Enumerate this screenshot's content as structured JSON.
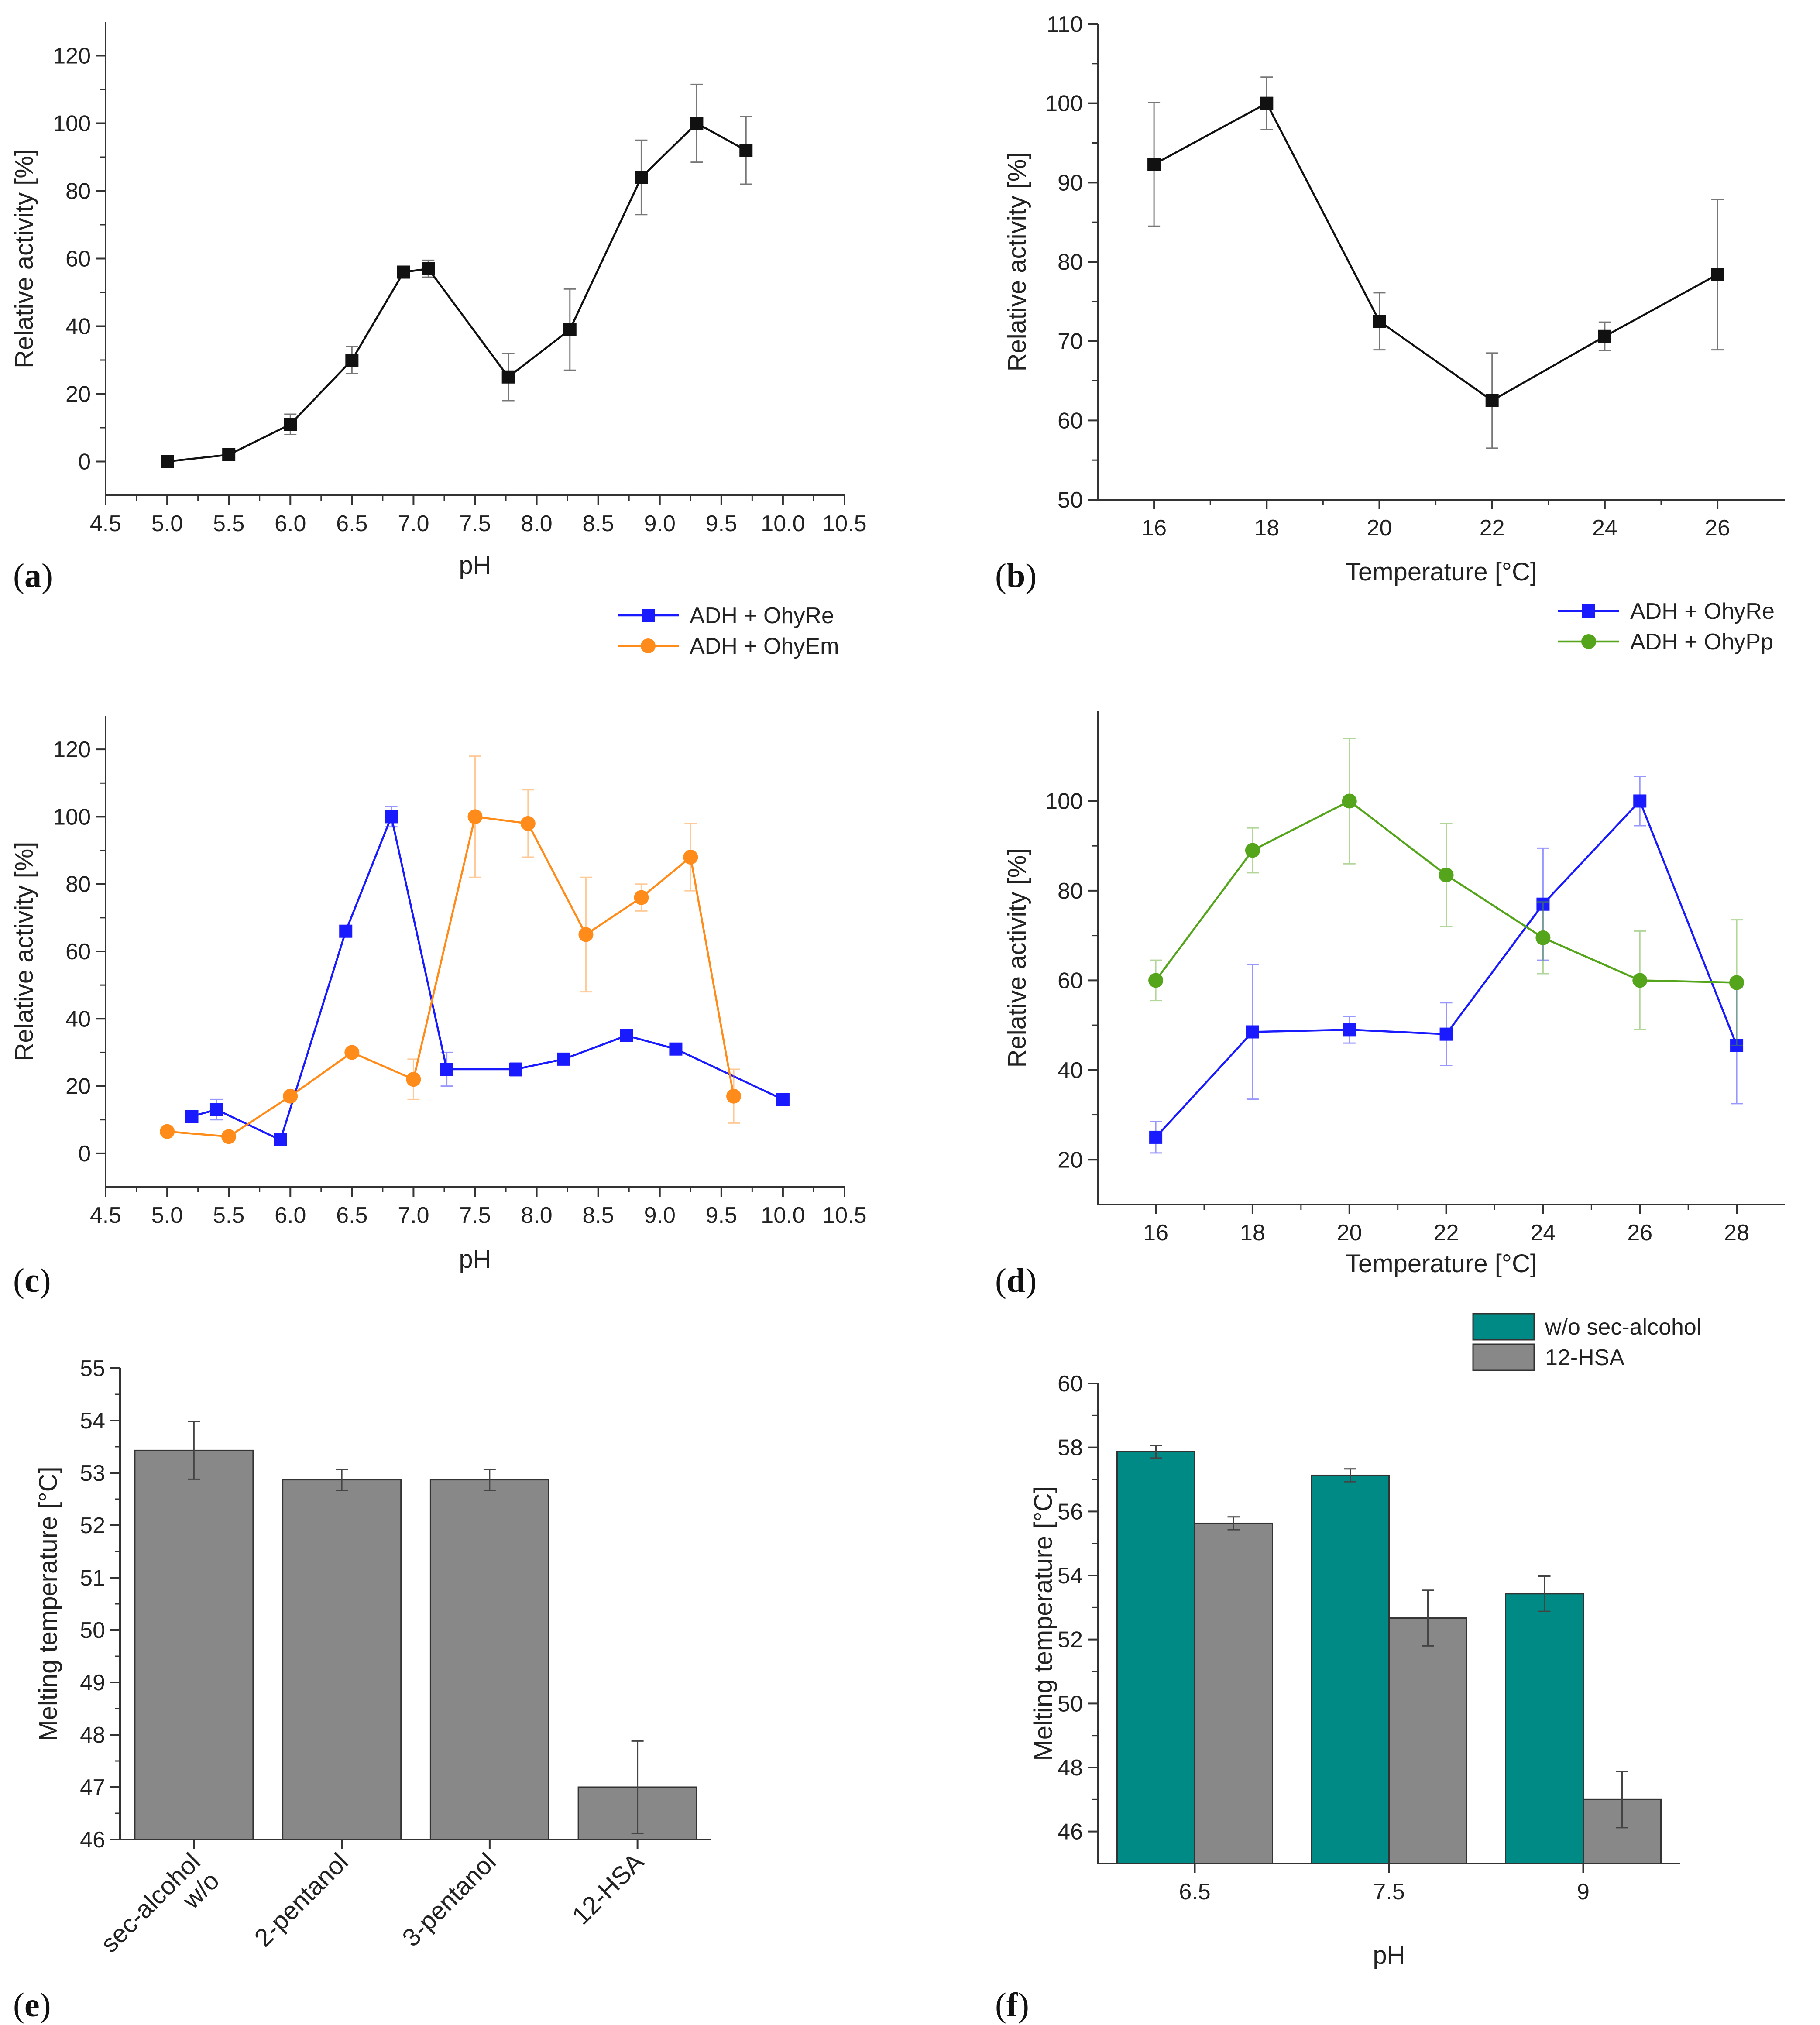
{
  "colors": {
    "black": "#111111",
    "blue": "#1a1aff",
    "orange": "#ff8c1a",
    "green": "#55a51c",
    "teal": "#008a85",
    "gray": "#888888"
  },
  "chart_data": [
    {
      "id": "a",
      "panel_label": "a",
      "type": "line",
      "xlabel": "pH",
      "ylabel": "Relative activity [%]",
      "xlim": [
        4.5,
        10.5
      ],
      "ylim": [
        -10,
        130
      ],
      "xticks": [
        4.5,
        5.0,
        5.5,
        6.0,
        6.5,
        7.0,
        7.5,
        8.0,
        8.5,
        9.0,
        9.5,
        10.0,
        10.5
      ],
      "xtick_labels": [
        "4.5",
        "5.0",
        "5.5",
        "6.0",
        "6.5",
        "7.0",
        "7.5",
        "8.0",
        "8.5",
        "9.0",
        "9.5",
        "10.0",
        "10.5"
      ],
      "yticks": [
        0,
        20,
        40,
        60,
        80,
        100,
        120
      ],
      "ytick_labels": [
        "0",
        "20",
        "40",
        "60",
        "80",
        "100",
        "120"
      ],
      "series": [
        {
          "name": "",
          "color": "#111111",
          "marker": "square",
          "x": [
            5.0,
            5.5,
            6.0,
            6.5,
            6.92,
            7.12,
            7.77,
            8.27,
            8.85,
            9.3,
            9.7
          ],
          "y": [
            0,
            2,
            11,
            30,
            56,
            57,
            25,
            39,
            84,
            100,
            92
          ],
          "err": [
            0,
            0,
            3,
            4,
            1.5,
            2.5,
            7,
            12,
            11,
            11.5,
            10
          ]
        }
      ]
    },
    {
      "id": "b",
      "panel_label": "b",
      "type": "line",
      "xlabel": "Temperature [°C]",
      "ylabel": "Relative activity [%]",
      "xlim": [
        15,
        27.2
      ],
      "ylim": [
        50,
        110
      ],
      "xticks": [
        16,
        18,
        20,
        22,
        24,
        26
      ],
      "xtick_labels": [
        "16",
        "18",
        "20",
        "22",
        "24",
        "26"
      ],
      "yticks": [
        50,
        60,
        70,
        80,
        90,
        100,
        110
      ],
      "ytick_labels": [
        "50",
        "60",
        "70",
        "80",
        "90",
        "100",
        "110"
      ],
      "series": [
        {
          "name": "",
          "color": "#111111",
          "marker": "square",
          "x": [
            16,
            18,
            20,
            22,
            24,
            26
          ],
          "y": [
            92.3,
            100,
            72.5,
            62.5,
            70.6,
            78.4
          ],
          "err": [
            7.8,
            3.3,
            3.6,
            6.0,
            1.8,
            9.5
          ]
        }
      ]
    },
    {
      "id": "c",
      "panel_label": "c",
      "type": "line",
      "xlabel": "pH",
      "ylabel": "Relative activity [%]",
      "xlim": [
        4.5,
        10.5
      ],
      "ylim": [
        -10,
        130
      ],
      "xticks": [
        4.5,
        5.0,
        5.5,
        6.0,
        6.5,
        7.0,
        7.5,
        8.0,
        8.5,
        9.0,
        9.5,
        10.0,
        10.5
      ],
      "xtick_labels": [
        "4.5",
        "5.0",
        "5.5",
        "6.0",
        "6.5",
        "7.0",
        "7.5",
        "8.0",
        "8.5",
        "9.0",
        "9.5",
        "10.0",
        "10.5"
      ],
      "yticks": [
        0,
        20,
        40,
        60,
        80,
        100,
        120
      ],
      "ytick_labels": [
        "0",
        "20",
        "40",
        "60",
        "80",
        "100",
        "120"
      ],
      "legend": [
        "ADH + OhyRe",
        "ADH + OhyEm"
      ],
      "legend_position": "top-right outside",
      "series": [
        {
          "name": "ADH + OhyRe",
          "color": "#1a1aff",
          "marker": "square",
          "x": [
            5.2,
            5.4,
            5.92,
            6.45,
            6.82,
            7.27,
            7.83,
            8.22,
            8.73,
            9.13,
            10.0
          ],
          "y": [
            11,
            13,
            4,
            66,
            100,
            25,
            25,
            28,
            35,
            31,
            16
          ],
          "err": [
            0,
            3,
            0,
            0,
            3,
            5,
            2,
            0,
            0,
            0,
            0
          ]
        },
        {
          "name": "ADH + OhyEm",
          "color": "#ff8c1a",
          "marker": "circle",
          "x": [
            5.0,
            5.5,
            6.0,
            6.5,
            7.0,
            7.5,
            7.93,
            8.4,
            8.85,
            9.25,
            9.6
          ],
          "y": [
            6.5,
            5,
            17,
            30,
            22,
            100,
            98,
            65,
            76,
            88,
            17
          ],
          "err": [
            0,
            0,
            0,
            0,
            6,
            18,
            10,
            17,
            4,
            10,
            8
          ]
        }
      ]
    },
    {
      "id": "d",
      "panel_label": "d",
      "type": "line",
      "xlabel": "Temperature [°C]",
      "ylabel": "Relative activity [%]",
      "xlim": [
        14.8,
        29
      ],
      "ylim": [
        10,
        120
      ],
      "xticks": [
        16,
        18,
        20,
        22,
        24,
        26,
        28
      ],
      "xtick_labels": [
        "16",
        "18",
        "20",
        "22",
        "24",
        "26",
        "28"
      ],
      "yticks": [
        20,
        40,
        60,
        80,
        100
      ],
      "ytick_labels": [
        "20",
        "40",
        "60",
        "80",
        "100"
      ],
      "legend": [
        "ADH + OhyRe",
        "ADH + OhyPp"
      ],
      "legend_position": "top-right outside",
      "series": [
        {
          "name": "ADH + OhyRe",
          "color": "#1a1aff",
          "marker": "square",
          "x": [
            16,
            18,
            20,
            22,
            24,
            26,
            28
          ],
          "y": [
            25,
            48.5,
            49,
            48,
            77,
            100,
            45.5
          ],
          "err": [
            3.5,
            15,
            3,
            7,
            12.5,
            5.5,
            13
          ]
        },
        {
          "name": "ADH + OhyPp",
          "color": "#55a51c",
          "marker": "circle",
          "x": [
            16,
            18,
            20,
            22,
            24,
            26,
            28
          ],
          "y": [
            60,
            89,
            100,
            83.5,
            69.5,
            60,
            59.5
          ],
          "err": [
            4.5,
            5,
            14,
            11.5,
            8,
            11,
            14
          ]
        }
      ]
    },
    {
      "id": "e",
      "panel_label": "e",
      "type": "bar",
      "xlabel": "",
      "ylabel": "Melting temperature [°C]",
      "ylim": [
        46,
        55
      ],
      "yticks": [
        46,
        47,
        48,
        49,
        50,
        51,
        52,
        53,
        54,
        55
      ],
      "ytick_labels": [
        "46",
        "47",
        "48",
        "49",
        "50",
        "51",
        "52",
        "53",
        "54",
        "55"
      ],
      "categories": [
        "w/o sec-alcohol",
        "2-pentanol",
        "3-pentanol",
        "12-HSA"
      ],
      "category_lines": [
        [
          "w/o",
          "sec-alcohol"
        ],
        [
          "2-pentanol"
        ],
        [
          "3-pentanol"
        ],
        [
          "12-HSA"
        ]
      ],
      "values": [
        53.43,
        52.87,
        52.87,
        47.0
      ],
      "err": [
        0.55,
        0.2,
        0.2,
        0.88
      ],
      "color": "#888888"
    },
    {
      "id": "f",
      "panel_label": "f",
      "type": "bar",
      "xlabel": "pH",
      "ylabel": "Melting temperature [°C]",
      "ylim": [
        45,
        60
      ],
      "yticks": [
        46,
        48,
        50,
        52,
        54,
        56,
        58,
        60
      ],
      "ytick_labels": [
        "46",
        "48",
        "50",
        "52",
        "54",
        "56",
        "58",
        "60"
      ],
      "categories": [
        "6.5",
        "7.5",
        "9"
      ],
      "legend": [
        "w/o sec-alcohol",
        "12-HSA"
      ],
      "legend_position": "top-right outside",
      "series": [
        {
          "name": "w/o sec-alcohol",
          "color": "#008a85",
          "values": [
            57.87,
            57.13,
            53.43
          ],
          "err": [
            0.2,
            0.2,
            0.55
          ]
        },
        {
          "name": "12-HSA",
          "color": "#888888",
          "values": [
            55.63,
            52.67,
            47.0
          ],
          "err": [
            0.2,
            0.87,
            0.88
          ]
        }
      ]
    }
  ]
}
